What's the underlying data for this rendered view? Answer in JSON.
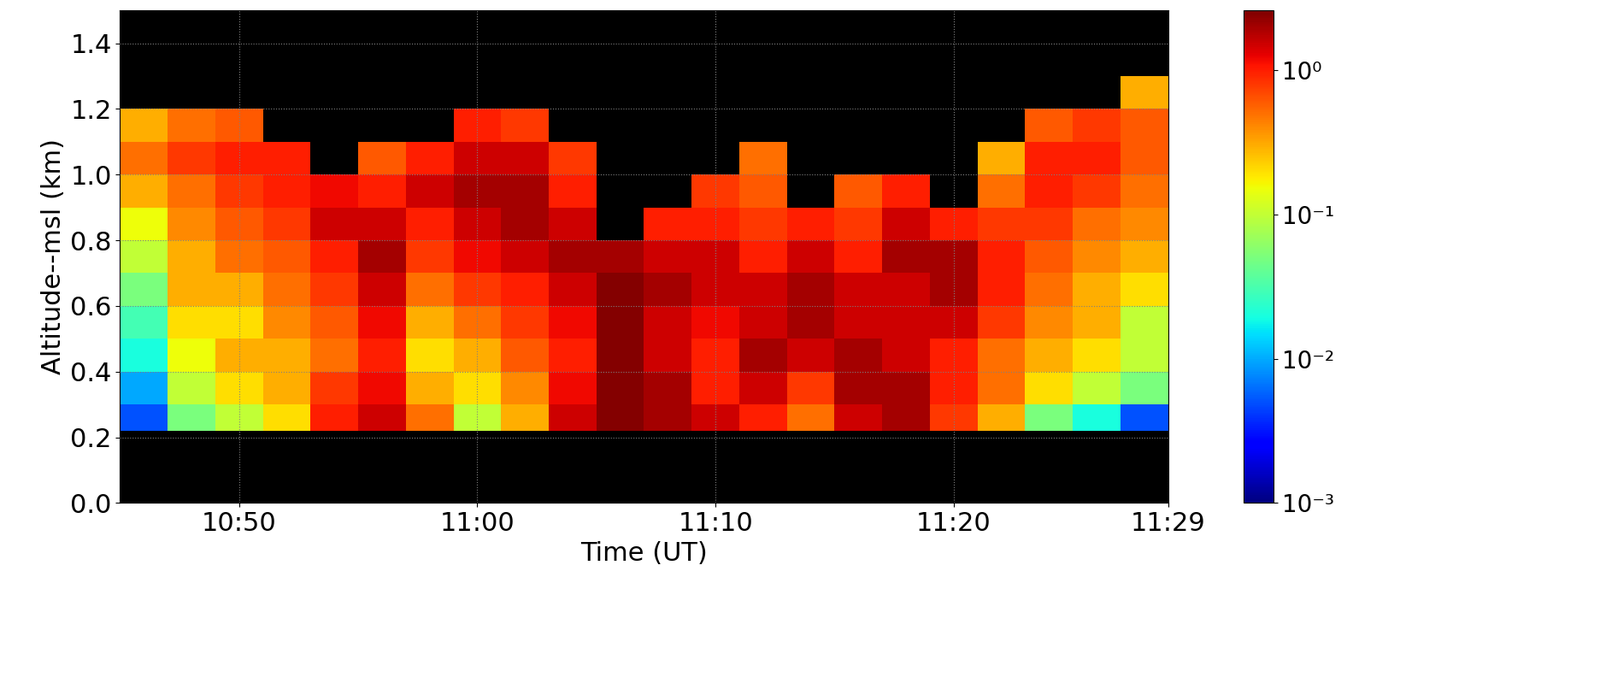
{
  "chart_data": {
    "type": "heatmap",
    "x_label": "Time (UT)",
    "y_label": "Altitude--msl (km)",
    "x": [
      645,
      647,
      649,
      651,
      653,
      655,
      657,
      659,
      661,
      663,
      665,
      667,
      669,
      671,
      673,
      675,
      677,
      679,
      681,
      683,
      685,
      687,
      689
    ],
    "y": [
      0.22,
      0.3,
      0.4,
      0.5,
      0.6,
      0.7,
      0.8,
      0.9,
      1.0,
      1.1,
      1.2,
      1.3
    ],
    "values": [
      [
        0.005,
        0.05,
        0.1,
        0.2,
        1.0,
        1.5,
        0.5,
        0.1,
        0.3,
        1.5,
        2.5,
        2.0,
        1.5,
        1.0,
        0.5,
        1.5,
        2.0,
        0.8,
        0.3,
        0.05,
        0.02,
        0.005
      ],
      [
        0.01,
        0.1,
        0.2,
        0.3,
        0.8,
        1.2,
        0.3,
        0.2,
        0.4,
        1.2,
        2.5,
        2.0,
        1.0,
        1.5,
        0.8,
        2.0,
        2.0,
        1.0,
        0.5,
        0.2,
        0.1,
        0.05
      ],
      [
        0.02,
        0.15,
        0.3,
        0.3,
        0.5,
        1.0,
        0.2,
        0.3,
        0.6,
        1.0,
        2.5,
        1.5,
        1.0,
        2.0,
        1.5,
        2.0,
        1.5,
        1.0,
        0.5,
        0.3,
        0.2,
        0.1
      ],
      [
        0.03,
        0.2,
        0.2,
        0.4,
        0.6,
        1.2,
        0.3,
        0.5,
        0.8,
        1.2,
        2.5,
        1.5,
        1.2,
        1.5,
        2.0,
        1.5,
        1.5,
        1.5,
        0.8,
        0.4,
        0.3,
        0.1
      ],
      [
        0.05,
        0.3,
        0.3,
        0.5,
        0.8,
        1.5,
        0.5,
        0.8,
        1.0,
        1.5,
        2.5,
        2.0,
        1.5,
        1.5,
        2.0,
        1.5,
        1.5,
        2.0,
        1.0,
        0.5,
        0.3,
        0.2
      ],
      [
        0.1,
        0.3,
        0.5,
        0.6,
        1.0,
        2.0,
        0.8,
        1.2,
        1.5,
        2.0,
        2.0,
        1.5,
        1.5,
        1.0,
        1.5,
        1.0,
        2.0,
        2.0,
        1.0,
        0.6,
        0.4,
        0.3
      ],
      [
        0.15,
        0.4,
        0.6,
        0.8,
        1.5,
        1.5,
        1.0,
        1.5,
        2.0,
        1.5,
        null,
        1.0,
        1.0,
        0.8,
        1.0,
        0.8,
        1.5,
        1.0,
        0.8,
        0.8,
        0.5,
        0.4
      ],
      [
        0.3,
        0.5,
        0.8,
        1.0,
        1.2,
        1.0,
        1.5,
        2.0,
        2.0,
        1.0,
        null,
        null,
        0.8,
        0.6,
        null,
        0.6,
        1.0,
        null,
        0.5,
        1.0,
        0.8,
        0.5
      ],
      [
        0.5,
        0.8,
        1.0,
        1.0,
        null,
        0.6,
        1.0,
        1.5,
        1.5,
        0.8,
        null,
        null,
        null,
        0.5,
        null,
        null,
        null,
        null,
        0.3,
        1.0,
        1.0,
        0.6
      ],
      [
        0.3,
        0.5,
        0.6,
        null,
        null,
        null,
        null,
        1.0,
        0.8,
        null,
        null,
        null,
        null,
        null,
        null,
        null,
        null,
        null,
        null,
        0.6,
        0.8,
        0.6
      ],
      [
        null,
        null,
        null,
        null,
        null,
        null,
        null,
        null,
        null,
        null,
        null,
        null,
        null,
        null,
        null,
        null,
        null,
        null,
        null,
        null,
        null,
        0.3
      ]
    ],
    "xlim": [
      645,
      689
    ],
    "xticks": [
      {
        "value": 650,
        "label": "10:50"
      },
      {
        "value": 660,
        "label": "11:00"
      },
      {
        "value": 670,
        "label": "11:10"
      },
      {
        "value": 680,
        "label": "11:20"
      },
      {
        "value": 689,
        "label": "11:29"
      }
    ],
    "ylim": [
      0,
      1.5
    ],
    "yticks": [
      {
        "value": 0,
        "label": "0.0"
      },
      0.2,
      0.4,
      0.6,
      0.8,
      {
        "value": 1,
        "label": "1.0"
      },
      1.2,
      1.4
    ],
    "log": "colorbar",
    "colorbar_range": [
      0.001,
      2.6
    ],
    "colorbar_ticks": [
      {
        "value": 0.001,
        "label": "10⁻³"
      },
      {
        "value": 0.01,
        "label": "10⁻²"
      },
      {
        "value": 0.1,
        "label": "10⁻¹"
      },
      {
        "value": 1,
        "label": "10⁰"
      }
    ],
    "grid": true
  }
}
